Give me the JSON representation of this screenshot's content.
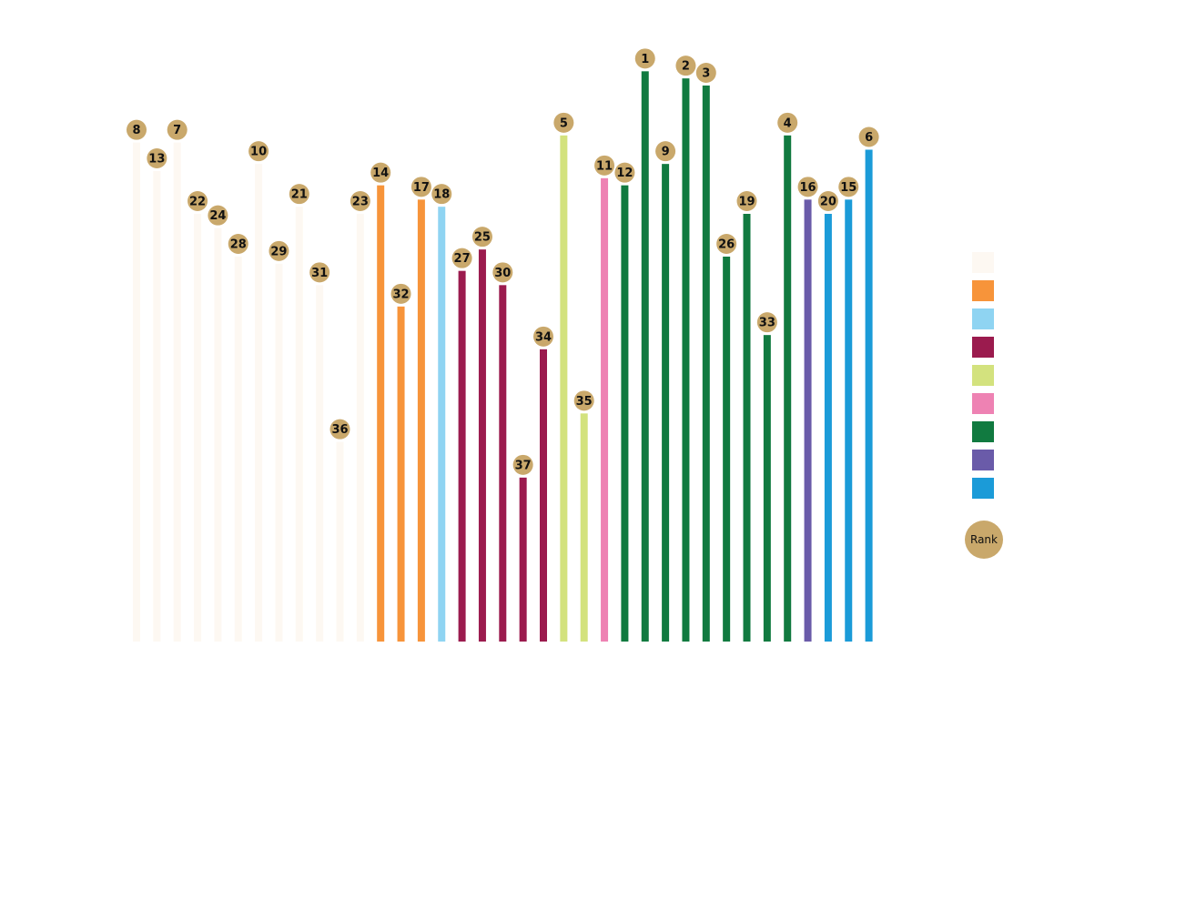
{
  "chart_data": {
    "type": "bar",
    "style": "lollipop",
    "grid": false,
    "legend_position": "right",
    "rank_marker_color": "#c9a86b",
    "group_colors": [
      "#fdf8f2",
      "#f7943a",
      "#8fd4f2",
      "#9b1b4e",
      "#d3e27e",
      "#ee82b3",
      "#117a40",
      "#6a5ba9",
      "#1b9bd8"
    ],
    "ranks": [
      8,
      13,
      7,
      22,
      24,
      28,
      10,
      29,
      21,
      31,
      36,
      23,
      14,
      32,
      17,
      18,
      27,
      25,
      30,
      37,
      34,
      5,
      35,
      11,
      12,
      1,
      9,
      2,
      3,
      26,
      19,
      33,
      4,
      16,
      20,
      15,
      6
    ],
    "values": [
      70,
      66,
      70,
      60,
      58,
      54,
      67,
      53,
      61,
      50,
      28,
      60,
      64,
      47,
      62,
      61,
      52,
      55,
      50,
      23,
      41,
      71,
      32,
      65,
      64,
      80,
      67,
      79,
      78,
      54,
      60,
      43,
      71,
      62,
      60,
      62,
      69
    ],
    "groups": [
      0,
      0,
      0,
      0,
      0,
      0,
      0,
      0,
      0,
      0,
      0,
      0,
      1,
      1,
      1,
      2,
      3,
      3,
      3,
      3,
      3,
      4,
      4,
      5,
      6,
      6,
      6,
      6,
      6,
      6,
      6,
      6,
      6,
      7,
      8,
      8,
      8
    ],
    "ylim": [
      0,
      90
    ]
  },
  "legend": {
    "rank_label": "Rank"
  }
}
